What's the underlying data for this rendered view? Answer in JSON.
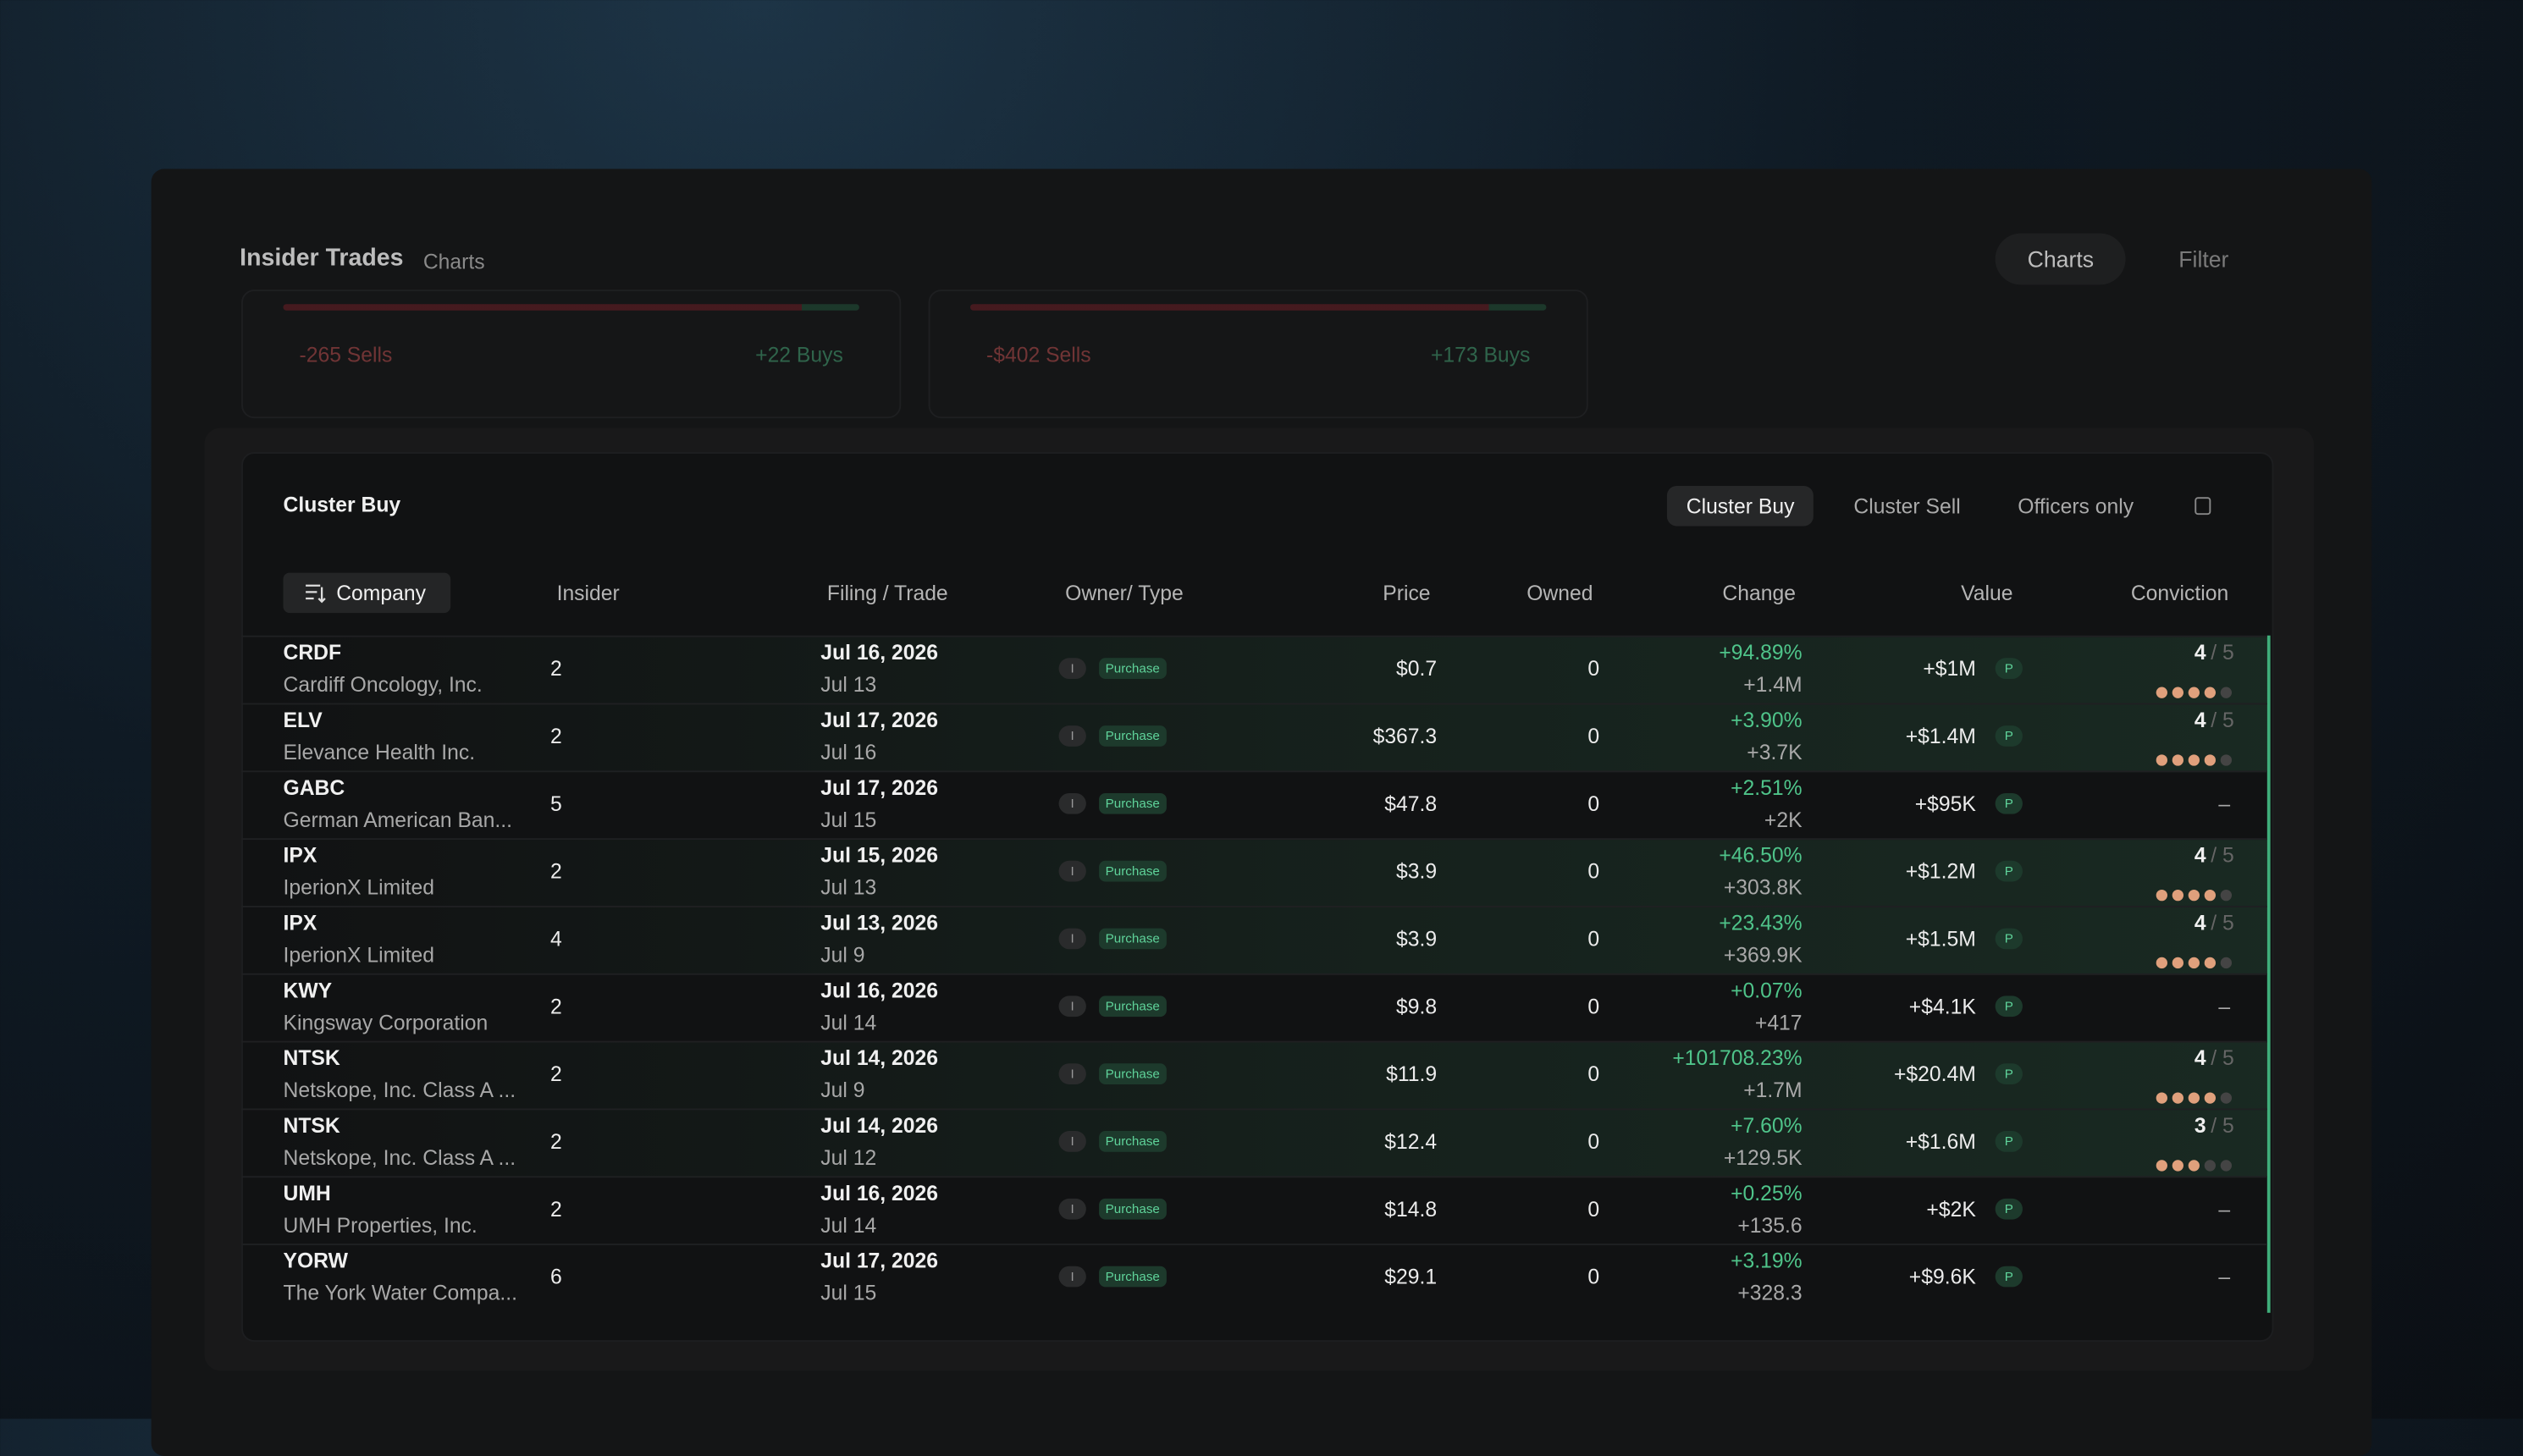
{
  "header": {
    "title": "Insider Trades",
    "subtitle": "Charts",
    "buttons": [
      "Charts",
      "Filter"
    ]
  },
  "summary_cards": [
    {
      "sells": "-265 Sells",
      "buys": "+22 Buys"
    },
    {
      "sells": "-$402 Sells",
      "buys": "+173 Buys"
    }
  ],
  "panel": {
    "title": "Cluster Buy",
    "tabs": [
      "Cluster Buy",
      "Cluster Sell",
      "Officers only"
    ]
  },
  "table": {
    "columns": [
      "Company",
      "Insider",
      "Filing / Trade",
      "Owner/ Type",
      "Price",
      "Owned",
      "Change",
      "Value",
      "Conviction"
    ],
    "conviction_max": "/ 5",
    "rows": [
      {
        "ticker": "CRDF",
        "company": "Cardiff Oncology, Inc.",
        "insider": 2,
        "filing": "Jul 16, 2026",
        "trade": "Jul 13",
        "owner": "I",
        "type": "Purchase",
        "price": "$0.7",
        "owned": 0,
        "change_pct": "+94.89%",
        "change": "+1.4M",
        "value": "+$1M",
        "value_badge": "P",
        "conviction": 4
      },
      {
        "ticker": "ELV",
        "company": "Elevance Health Inc.",
        "insider": 2,
        "filing": "Jul 17, 2026",
        "trade": "Jul 16",
        "owner": "I",
        "type": "Purchase",
        "price": "$367.3",
        "owned": 0,
        "change_pct": "+3.90%",
        "change": "+3.7K",
        "value": "+$1.4M",
        "value_badge": "P",
        "conviction": 4
      },
      {
        "ticker": "GABC",
        "company": "German American Ban...",
        "insider": 5,
        "filing": "Jul 17, 2026",
        "trade": "Jul 15",
        "owner": "I",
        "type": "Purchase",
        "price": "$47.8",
        "owned": 0,
        "change_pct": "+2.51%",
        "change": "+2K",
        "value": "+$95K",
        "value_badge": "P",
        "conviction": "–"
      },
      {
        "ticker": "IPX",
        "company": "IperionX Limited",
        "insider": 2,
        "filing": "Jul 15, 2026",
        "trade": "Jul 13",
        "owner": "I",
        "type": "Purchase",
        "price": "$3.9",
        "owned": 0,
        "change_pct": "+46.50%",
        "change": "+303.8K",
        "value": "+$1.2M",
        "value_badge": "P",
        "conviction": 4
      },
      {
        "ticker": "IPX",
        "company": "IperionX Limited",
        "insider": 4,
        "filing": "Jul 13, 2026",
        "trade": "Jul 9",
        "owner": "I",
        "type": "Purchase",
        "price": "$3.9",
        "owned": 0,
        "change_pct": "+23.43%",
        "change": "+369.9K",
        "value": "+$1.5M",
        "value_badge": "P",
        "conviction": 4
      },
      {
        "ticker": "KWY",
        "company": "Kingsway Corporation",
        "insider": 2,
        "filing": "Jul 16, 2026",
        "trade": "Jul 14",
        "owner": "I",
        "type": "Purchase",
        "price": "$9.8",
        "owned": 0,
        "change_pct": "+0.07%",
        "change": "+417",
        "value": "+$4.1K",
        "value_badge": "P",
        "conviction": "–"
      },
      {
        "ticker": "NTSK",
        "company": "Netskope, Inc. Class A ...",
        "insider": 2,
        "filing": "Jul 14, 2026",
        "trade": "Jul 9",
        "owner": "I",
        "type": "Purchase",
        "price": "$11.9",
        "owned": 0,
        "change_pct": "+101708.23%",
        "change": "+1.7M",
        "value": "+$20.4M",
        "value_badge": "P",
        "conviction": 4
      },
      {
        "ticker": "NTSK",
        "company": "Netskope, Inc. Class A ...",
        "insider": 2,
        "filing": "Jul 14, 2026",
        "trade": "Jul 12",
        "owner": "I",
        "type": "Purchase",
        "price": "$12.4",
        "owned": 0,
        "change_pct": "+7.60%",
        "change": "+129.5K",
        "value": "+$1.6M",
        "value_badge": "P",
        "conviction": 3
      },
      {
        "ticker": "UMH",
        "company": "UMH Properties, Inc.",
        "insider": 2,
        "filing": "Jul 16, 2026",
        "trade": "Jul 14",
        "owner": "I",
        "type": "Purchase",
        "price": "$14.8",
        "owned": 0,
        "change_pct": "+0.25%",
        "change": "+135.6",
        "value": "+$2K",
        "value_badge": "P",
        "conviction": "–"
      },
      {
        "ticker": "YORW",
        "company": "The York Water Compa...",
        "insider": 6,
        "filing": "Jul 17, 2026",
        "trade": "Jul 15",
        "owner": "I",
        "type": "Purchase",
        "price": "$29.1",
        "owned": 0,
        "change_pct": "+3.19%",
        "change": "+328.3",
        "value": "+$9.6K",
        "value_badge": "P",
        "conviction": "–"
      }
    ]
  }
}
